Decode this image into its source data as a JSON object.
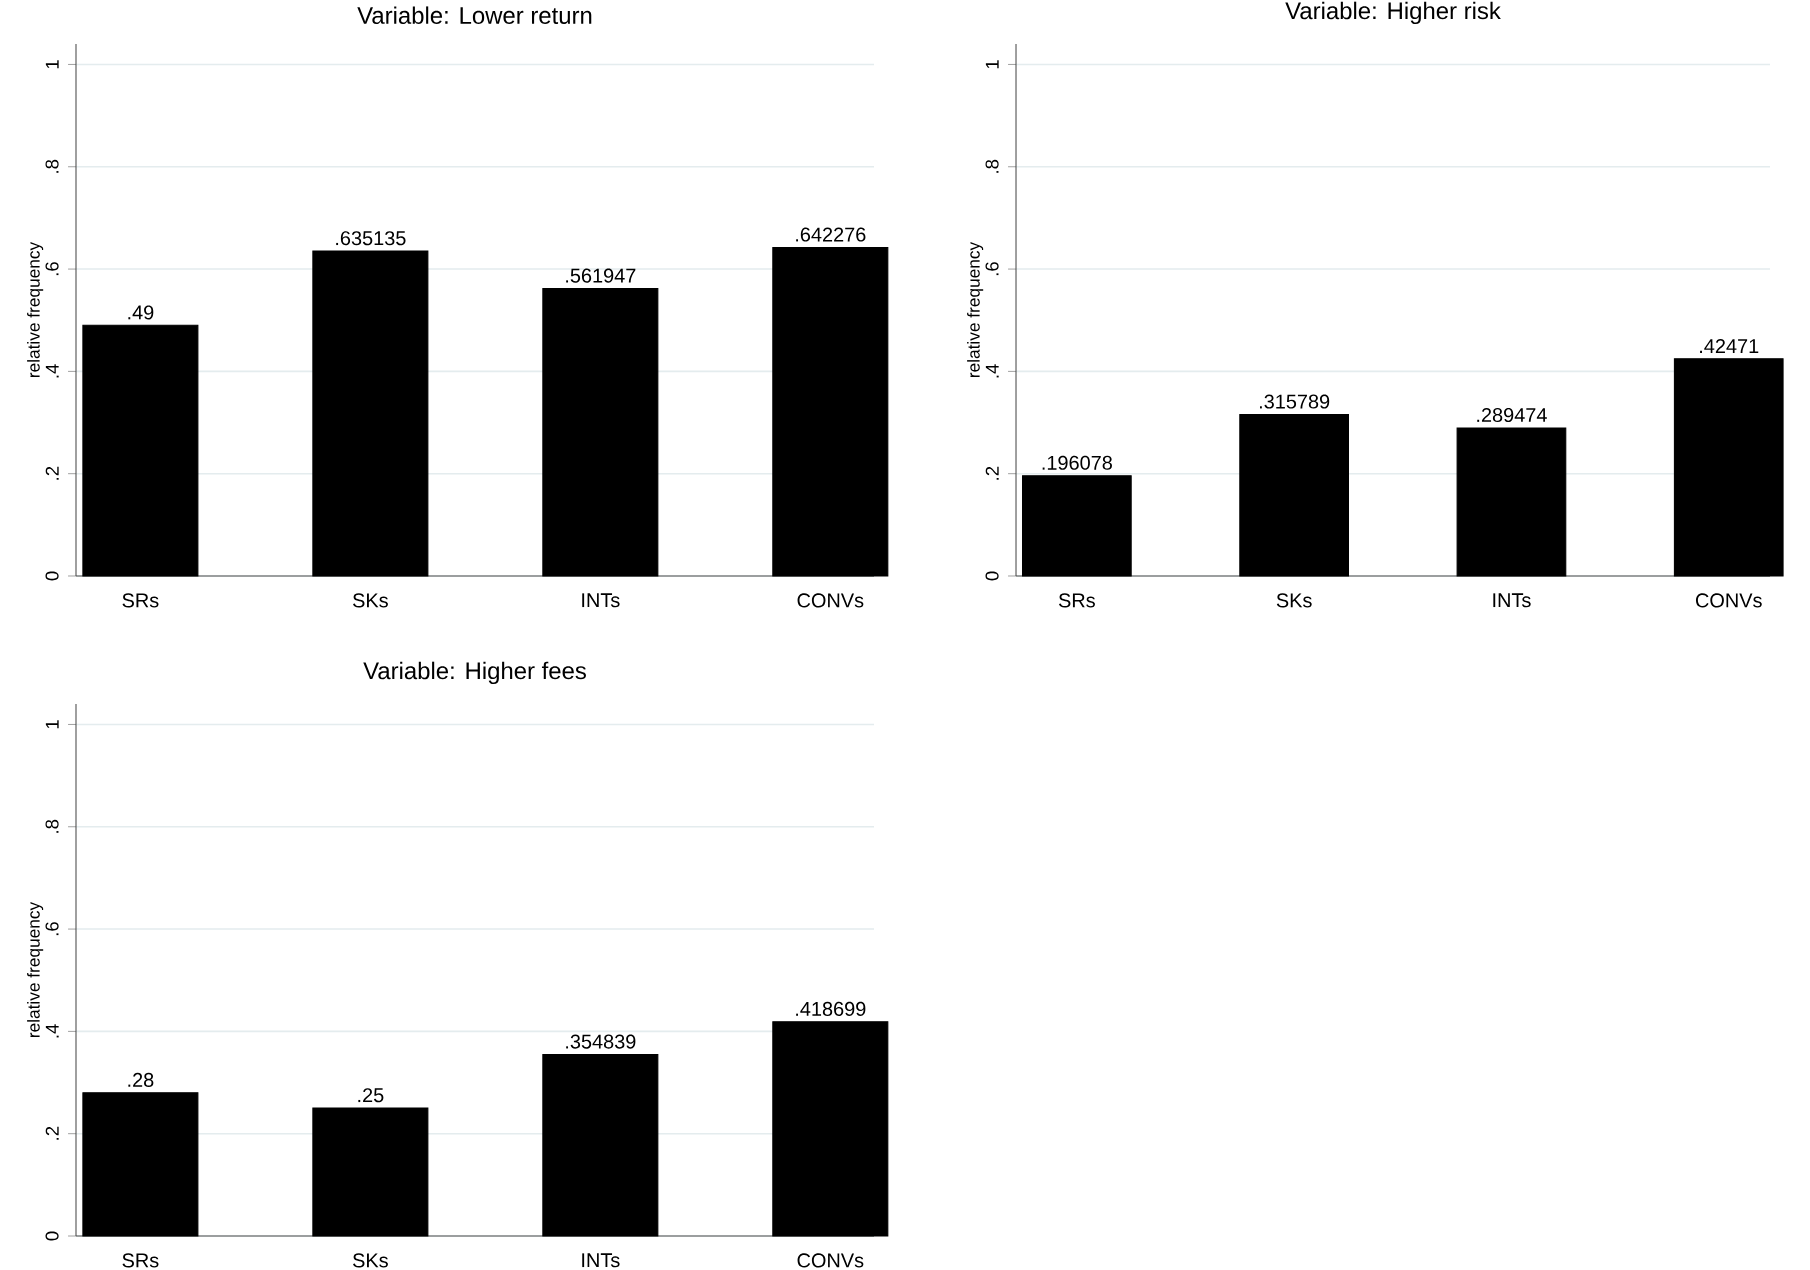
{
  "chart_data": [
    {
      "type": "bar",
      "title": "Variable: Lower return",
      "ylabel": "relative frequency",
      "categories": [
        "SRs",
        "SKs",
        "INTs",
        "CONVs"
      ],
      "values": [
        0.49,
        0.635135,
        0.561947,
        0.642276
      ],
      "value_labels": [
        ".49",
        ".635135",
        ".561947",
        ".642276"
      ],
      "color": "#000000",
      "ylim": [
        0,
        1.04
      ],
      "yticks": [
        0,
        {
          "value": 0.2,
          "label": ".2"
        },
        {
          "value": 0.4,
          "label": ".4"
        },
        {
          "value": 0.6,
          "label": ".6"
        },
        {
          "value": 0.8,
          "label": ".8"
        },
        1
      ],
      "grid": "y"
    },
    {
      "type": "bar",
      "title": "Variable: Higher risk",
      "ylabel": "relative frequency",
      "categories": [
        "SRs",
        "SKs",
        "INTs",
        "CONVs"
      ],
      "values": [
        0.196078,
        0.315789,
        0.289474,
        0.42471
      ],
      "value_labels": [
        ".196078",
        ".315789",
        ".289474",
        ".42471"
      ],
      "color": "#000000",
      "ylim": [
        0,
        1.04
      ],
      "yticks": [
        0,
        {
          "value": 0.2,
          "label": ".2"
        },
        {
          "value": 0.4,
          "label": ".4"
        },
        {
          "value": 0.6,
          "label": ".6"
        },
        {
          "value": 0.8,
          "label": ".8"
        },
        1
      ],
      "grid": "y"
    },
    {
      "type": "bar",
      "title": "Variable: Higher fees",
      "ylabel": "relative frequency",
      "categories": [
        "SRs",
        "SKs",
        "INTs",
        "CONVs"
      ],
      "values": [
        0.28,
        0.25,
        0.354839,
        0.418699
      ],
      "value_labels": [
        ".28",
        ".25",
        ".354839",
        ".418699"
      ],
      "color": "#000000",
      "ylim": [
        0,
        1.04
      ],
      "yticks": [
        0,
        {
          "value": 0.2,
          "label": ".2"
        },
        {
          "value": 0.4,
          "label": ".4"
        },
        {
          "value": 0.6,
          "label": ".6"
        },
        {
          "value": 0.8,
          "label": ".8"
        },
        1
      ],
      "grid": "y"
    }
  ]
}
